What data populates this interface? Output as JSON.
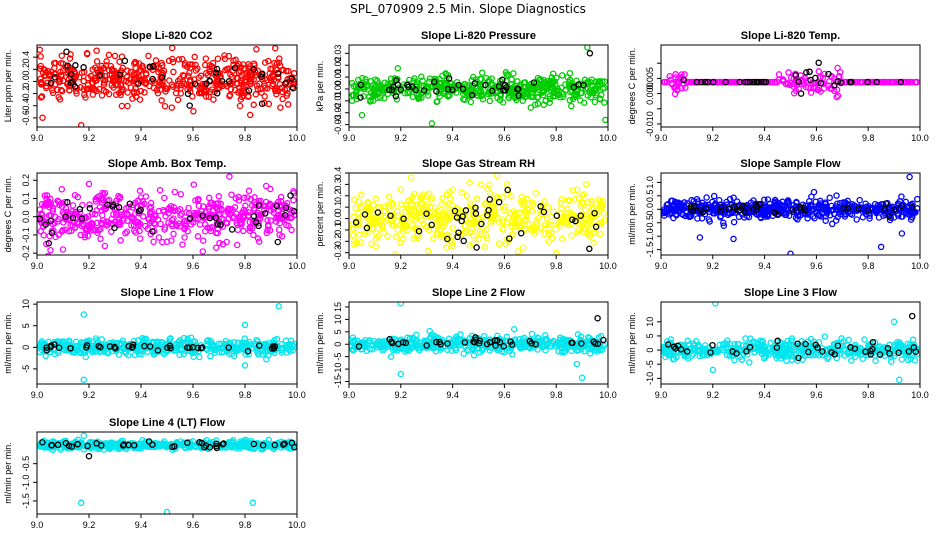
{
  "page": {
    "title": "SPL_070909  2.5 Min. Slope Diagnostics"
  },
  "chart_data": [
    {
      "type": "scatter",
      "title": "Slope Li-820 CO2",
      "ylabel": "Liter ppm per min.",
      "xlim": [
        9.0,
        10.0
      ],
      "ylim": [
        -0.75,
        0.6
      ],
      "xticks": [
        9.0,
        9.2,
        9.4,
        9.6,
        9.8,
        10.0
      ],
      "yticks": [
        -0.6,
        -0.4,
        -0.2,
        0.0,
        0.2,
        0.4
      ],
      "ytick_labels": [
        "-0.6",
        "-0.4",
        "-0.2",
        "0.0",
        "0.2",
        "0.4"
      ],
      "series": [
        {
          "color": "#ff0000",
          "n": 520,
          "spread": 0.18,
          "center": 0.03,
          "outliers": [
            [
              9.17,
              -0.72
            ],
            [
              9.52,
              0.55
            ],
            [
              9.82,
              -0.55
            ],
            [
              9.3,
              0.42
            ]
          ]
        },
        {
          "color": "#000000",
          "n": 38,
          "spread": 0.15,
          "center": 0.03,
          "outliers": []
        }
      ]
    },
    {
      "type": "scatter",
      "title": "Slope Li-820 Pressure",
      "ylabel": "kPa per min.",
      "xlim": [
        9.0,
        10.0
      ],
      "ylim": [
        -0.032,
        0.037
      ],
      "xticks": [
        9.0,
        9.2,
        9.4,
        9.6,
        9.8,
        10.0
      ],
      "yticks": [
        -0.03,
        -0.02,
        -0.01,
        0.0,
        0.01,
        0.02,
        0.03
      ],
      "ytick_labels": [
        "-0.03",
        "-0.02",
        "-0.01",
        "0.00",
        "0.01",
        "0.02",
        "0.03"
      ],
      "series": [
        {
          "color": "#00cc00",
          "n": 480,
          "spread": 0.0055,
          "center": 0.0,
          "outliers": [
            [
              9.92,
              0.035
            ],
            [
              9.32,
              -0.029
            ],
            [
              9.99,
              -0.026
            ],
            [
              9.05,
              -0.022
            ]
          ]
        },
        {
          "color": "#000000",
          "n": 38,
          "spread": 0.004,
          "center": 0.0,
          "outliers": [
            [
              9.93,
              0.03
            ]
          ]
        }
      ]
    },
    {
      "type": "scatter",
      "title": "Slope Li-820 Temp.",
      "ylabel": "degrees C per min.",
      "xlim": [
        9.0,
        10.0
      ],
      "ylim": [
        -0.011,
        0.016
      ],
      "xticks": [
        9.0,
        9.2,
        9.4,
        9.6,
        9.8,
        10.0
      ],
      "yticks": [
        -0.01,
        -0.005,
        0.0,
        0.005,
        0.01
      ],
      "ytick_labels": [
        "-0.010",
        "",
        "0.000",
        "0.005",
        ""
      ],
      "series": [
        {
          "color": "#ff00ff",
          "n": 300,
          "spread": 0.0,
          "center": 0.0038,
          "outliers": [],
          "clusters": [
            [
              9.03,
              9.1,
              0.0,
              0.004
            ],
            [
              9.45,
              9.7,
              0.0042,
              0.0045
            ]
          ]
        },
        {
          "color": "#000000",
          "n": 38,
          "spread": 0.0,
          "center": 0.0038,
          "outliers": [],
          "clusters": [
            [
              9.03,
              9.1,
              0.0,
              0.003
            ],
            [
              9.45,
              9.7,
              0.0042,
              0.004
            ]
          ]
        }
      ]
    },
    {
      "type": "scatter",
      "title": "Slope Amb. Box Temp.",
      "ylabel": "degrees C per min.",
      "xlim": [
        9.0,
        10.0
      ],
      "ylim": [
        -0.21,
        0.24
      ],
      "xticks": [
        9.0,
        9.2,
        9.4,
        9.6,
        9.8,
        10.0
      ],
      "yticks": [
        -0.2,
        -0.1,
        0.0,
        0.1,
        0.2
      ],
      "ytick_labels": [
        "-0.2",
        "-0.1",
        "0.0",
        "0.1",
        "0.2"
      ],
      "series": [
        {
          "color": "#ff00ff",
          "n": 500,
          "spread": 0.065,
          "center": 0.0,
          "outliers": [
            [
              9.74,
              0.22
            ],
            [
              9.2,
              0.18
            ],
            [
              9.1,
              -0.18
            ]
          ]
        },
        {
          "color": "#000000",
          "n": 38,
          "spread": 0.06,
          "center": 0.0,
          "outliers": []
        }
      ]
    },
    {
      "type": "scatter",
      "title": "Slope Gas Stream RH",
      "ylabel": "percent per min.",
      "xlim": [
        9.0,
        10.0
      ],
      "ylim": [
        -0.32,
        0.4
      ],
      "xticks": [
        9.0,
        9.2,
        9.4,
        9.6,
        9.8,
        10.0
      ],
      "yticks": [
        -0.3,
        -0.2,
        -0.1,
        0.0,
        0.1,
        0.2,
        0.3,
        0.4
      ],
      "ytick_labels": [
        "-0.3",
        "-0.2",
        "-0.1",
        "0.0",
        "0.1",
        "0.2",
        "0.3",
        "0.4"
      ],
      "series": [
        {
          "color": "#ffff00",
          "n": 500,
          "spread": 0.12,
          "center": 0.0,
          "outliers": [
            [
              9.24,
              0.36
            ],
            [
              9.8,
              -0.3
            ]
          ]
        },
        {
          "color": "#000000",
          "n": 38,
          "spread": 0.1,
          "center": 0.0,
          "outliers": []
        }
      ]
    },
    {
      "type": "scatter",
      "title": "Slope Sample Flow",
      "ylabel": "ml/min per min.",
      "xlim": [
        9.0,
        10.0
      ],
      "ylim": [
        -1.7,
        1.35
      ],
      "xticks": [
        9.0,
        9.2,
        9.4,
        9.6,
        9.8,
        10.0
      ],
      "yticks": [
        -1.5,
        -1.0,
        -0.5,
        0.0,
        0.5,
        1.0
      ],
      "ytick_labels": [
        "-1.5",
        "-1.0",
        "-0.5",
        "0.0",
        "0.5",
        "1.0"
      ],
      "series": [
        {
          "color": "#0000ff",
          "n": 520,
          "spread": 0.18,
          "center": 0.0,
          "outliers": [
            [
              9.96,
              1.2
            ],
            [
              9.5,
              -1.65
            ],
            [
              9.28,
              -1.1
            ],
            [
              9.93,
              -0.9
            ],
            [
              9.85,
              -1.4
            ],
            [
              9.15,
              -1.05
            ]
          ]
        },
        {
          "color": "#000000",
          "n": 38,
          "spread": 0.12,
          "center": 0.0,
          "outliers": []
        }
      ]
    },
    {
      "type": "scatter",
      "title": "Slope Line 1 Flow",
      "ylabel": "ml/min per min.",
      "xlim": [
        9.0,
        10.0
      ],
      "ylim": [
        -8.5,
        10.5
      ],
      "xticks": [
        9.0,
        9.2,
        9.4,
        9.6,
        9.8,
        10.0
      ],
      "yticks": [
        -5,
        0,
        5,
        10
      ],
      "ytick_labels": [
        "-5",
        "0",
        "5",
        "10"
      ],
      "series": [
        {
          "color": "#00e5ee",
          "n": 480,
          "spread": 0.9,
          "center": 0.0,
          "outliers": [
            [
              9.18,
              -7.5
            ],
            [
              9.93,
              9.5
            ],
            [
              9.18,
              7.6
            ],
            [
              9.8,
              5.2
            ],
            [
              9.8,
              -4.2
            ]
          ]
        },
        {
          "color": "#000000",
          "n": 38,
          "spread": 0.3,
          "center": 0.0,
          "outliers": []
        }
      ]
    },
    {
      "type": "scatter",
      "title": "Slope Line 2 Flow",
      "ylabel": "ml/min per min.",
      "xlim": [
        9.0,
        10.0
      ],
      "ylim": [
        -16,
        17
      ],
      "xticks": [
        9.0,
        9.2,
        9.4,
        9.6,
        9.8,
        10.0
      ],
      "yticks": [
        -15,
        -10,
        -5,
        0,
        5,
        10,
        15
      ],
      "ytick_labels": [
        "-15",
        "-10",
        "-5",
        "0",
        "5",
        "10",
        "15"
      ],
      "series": [
        {
          "color": "#00e5ee",
          "n": 480,
          "spread": 1.6,
          "center": 0.0,
          "outliers": [
            [
              9.2,
              16.5
            ],
            [
              9.2,
              -12
            ],
            [
              9.9,
              -13.5
            ],
            [
              9.88,
              -8
            ]
          ]
        },
        {
          "color": "#000000",
          "n": 38,
          "spread": 1.0,
          "center": 0.5,
          "outliers": [
            [
              9.96,
              10.5
            ]
          ]
        }
      ]
    },
    {
      "type": "scatter",
      "title": "Slope Line 3 Flow",
      "ylabel": "ml/min per min.",
      "xlim": [
        9.0,
        10.0
      ],
      "ylim": [
        -12,
        17
      ],
      "xticks": [
        9.0,
        9.2,
        9.4,
        9.6,
        9.8,
        10.0
      ],
      "yticks": [
        -10,
        -5,
        0,
        5,
        10
      ],
      "ytick_labels": [
        "-10",
        "-5",
        "0",
        "5",
        "10"
      ],
      "series": [
        {
          "color": "#00e5ee",
          "n": 480,
          "spread": 1.6,
          "center": 0.0,
          "outliers": [
            [
              9.21,
              16.5
            ],
            [
              9.92,
              -10.5
            ],
            [
              9.2,
              -7
            ],
            [
              9.9,
              10
            ]
          ]
        },
        {
          "color": "#000000",
          "n": 38,
          "spread": 1.2,
          "center": 0.5,
          "outliers": [
            [
              9.97,
              12
            ]
          ]
        }
      ]
    },
    {
      "type": "scatter",
      "title": "Slope Line 4 (LT) Flow",
      "ylabel": "ml/min per min.",
      "xlim": [
        9.0,
        10.0
      ],
      "ylim": [
        -1.85,
        0.35
      ],
      "xticks": [
        9.0,
        9.2,
        9.4,
        9.6,
        9.8,
        10.0
      ],
      "yticks": [
        -1.5,
        -1.0,
        -0.5
      ],
      "ytick_labels": [
        "-1.5",
        "-1.0",
        "-0.5"
      ],
      "series": [
        {
          "color": "#00e5ee",
          "n": 480,
          "spread": 0.05,
          "center": 0.0,
          "outliers": [
            [
              9.17,
              -1.55
            ],
            [
              9.5,
              -1.8
            ],
            [
              9.83,
              -1.55
            ],
            [
              9.18,
              0.25
            ]
          ]
        },
        {
          "color": "#000000",
          "n": 38,
          "spread": 0.05,
          "center": 0.0,
          "outliers": [
            [
              9.2,
              -0.3
            ]
          ]
        }
      ]
    }
  ]
}
